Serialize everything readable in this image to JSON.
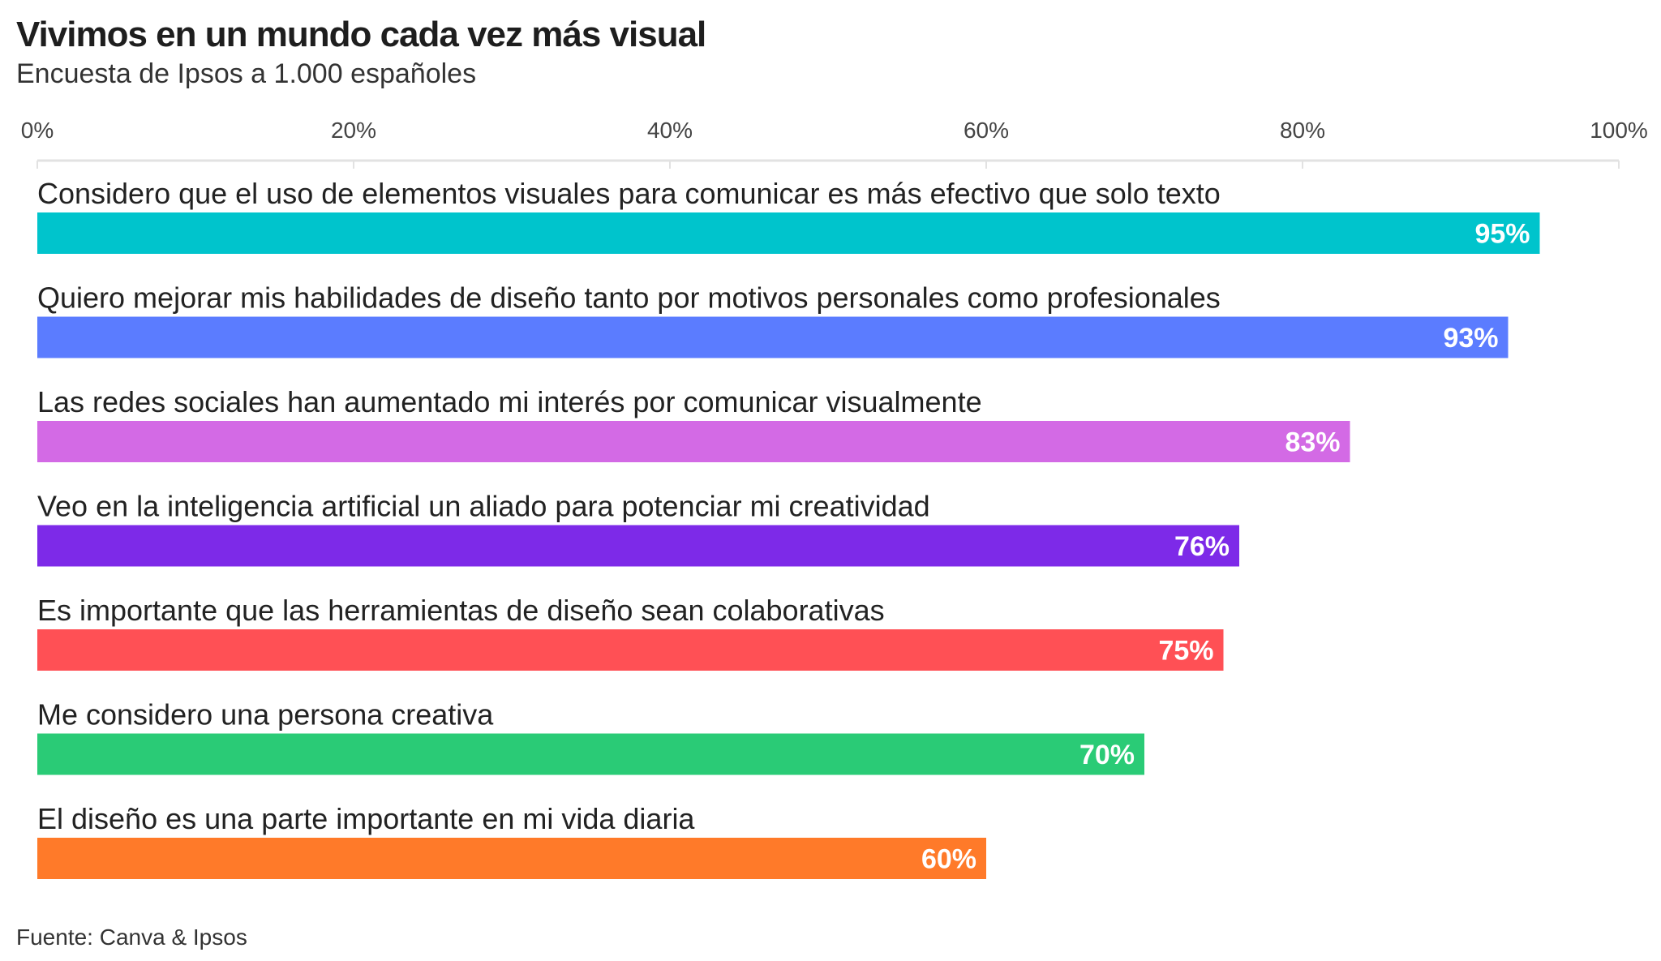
{
  "title": "Vivimos en un mundo cada vez más visual",
  "subtitle": "Encuesta de Ipsos a 1.000 españoles",
  "source": "Fuente: Canva & Ipsos",
  "chart_data": {
    "type": "bar",
    "orientation": "horizontal",
    "title": "Vivimos en un mundo cada vez más visual",
    "subtitle": "Encuesta de Ipsos a 1.000 españoles",
    "xlim": [
      0,
      100
    ],
    "x_ticks": [
      0,
      20,
      40,
      60,
      80,
      100
    ],
    "x_tick_labels": [
      "0%",
      "20%",
      "40%",
      "60%",
      "80%",
      "100%"
    ],
    "axis_position": "top",
    "grid": false,
    "categories": [
      "Considero que el uso de elementos visuales para comunicar es más efectivo que solo texto",
      "Quiero mejorar mis habilidades de diseño tanto por motivos personales como profesionales",
      "Las redes sociales han aumentado mi interés por comunicar visualmente",
      "Veo en la inteligencia artificial un aliado para potenciar mi creatividad",
      "Es importante que las herramientas de diseño sean colaborativas",
      "Me considero una persona creativa",
      "El diseño es una parte importante en mi vida diaria"
    ],
    "values": [
      95,
      93,
      83,
      76,
      75,
      70,
      60
    ],
    "value_labels": [
      "95%",
      "93%",
      "83%",
      "76%",
      "75%",
      "70%",
      "60%"
    ],
    "colors": [
      "#00C4CC",
      "#5B7CFF",
      "#D36AE5",
      "#7D2AE8",
      "#FF5055",
      "#2ACB76",
      "#FF7A29"
    ]
  }
}
